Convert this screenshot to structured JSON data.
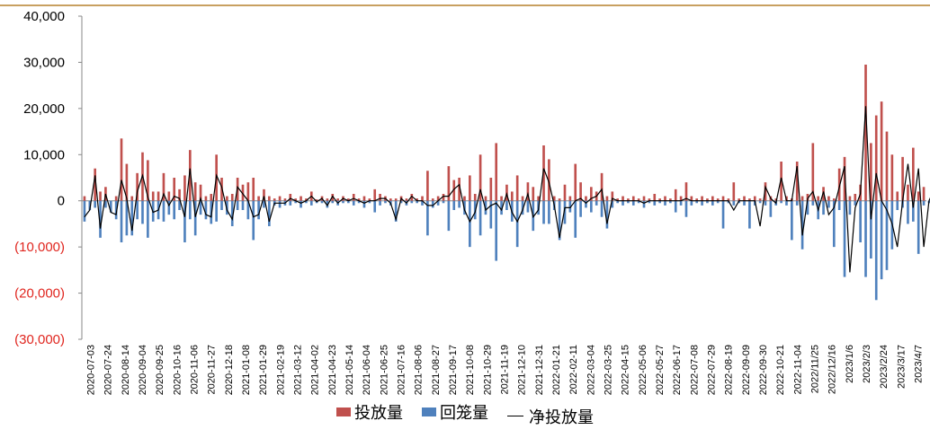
{
  "chart_data": {
    "type": "bar",
    "y_axis": {
      "ylim": [
        -30000,
        40000
      ],
      "ticks": [
        40000,
        30000,
        20000,
        10000,
        0,
        -10000,
        -20000,
        -30000
      ],
      "tick_labels": [
        "40,000",
        "30,000",
        "20,000",
        "10,000",
        "0",
        "(10,000)",
        "(20,000)",
        "(30,000)"
      ],
      "negative_color": "#e0261f"
    },
    "x_tick_labels": [
      "2020-07-03",
      "2020-07-24",
      "2020-08-14",
      "2020-09-04",
      "2020-09-25",
      "2020-10-16",
      "2020-11-06",
      "2020-11-27",
      "2020-12-18",
      "2021-01-08",
      "2021-01-29",
      "2021-02-19",
      "2021-03-12",
      "2021-04-02",
      "2021-04-23",
      "2021-05-14",
      "2021-06-04",
      "2021-06-25",
      "2021-07-16",
      "2021-08-06",
      "2021-08-27",
      "2021-09-17",
      "2021-10-08",
      "2021-10-29",
      "2021-11-19",
      "2021-12-10",
      "2021-12-31",
      "2022-01-21",
      "2022-02-11",
      "2022-03-04",
      "2022-03-25",
      "2022-04-15",
      "2022-05-06",
      "2022-05-27",
      "2022-06-17",
      "2022-07-08",
      "2022-07-29",
      "2022-08-19",
      "2022-09-09",
      "2022-09-30",
      "2022-10-21",
      "2022-11-04",
      "2022/11/25",
      "2022/12/16",
      "2023/1/6",
      "2023/2/3",
      "2023/2/24",
      "2023/3/17",
      "2023/4/7"
    ],
    "series": [
      {
        "name": "投放量",
        "color": "#c0504d",
        "values": [
          1000,
          0,
          7000,
          2000,
          3000,
          0,
          1000,
          13500,
          8000,
          1000,
          6000,
          10500,
          8800,
          2000,
          2000,
          6000,
          2000,
          5000,
          2500,
          5500,
          11000,
          4000,
          3500,
          1000,
          1500,
          10000,
          5000,
          1000,
          1500,
          5000,
          3500,
          4000,
          5000,
          1000,
          2500,
          1000,
          500,
          1000,
          500,
          1500,
          500,
          1000,
          500,
          2000,
          300,
          1000,
          500,
          1500,
          500,
          1000,
          500,
          1500,
          500,
          1000,
          500,
          2500,
          1500,
          1000,
          500,
          500,
          1000,
          500,
          1500,
          500,
          1000,
          6500,
          500,
          1000,
          1500,
          7500,
          4500,
          5000,
          1000,
          5500,
          1500,
          10000,
          1000,
          5000,
          12500,
          1000,
          3500,
          2000,
          5500,
          1000,
          4000,
          3000,
          1000,
          12000,
          9000,
          1000,
          500,
          3500,
          1000,
          8000,
          4000,
          1000,
          3000,
          2000,
          6000,
          1000,
          2000,
          500,
          1000,
          500,
          1000,
          500,
          1000,
          500,
          1500,
          500,
          1000,
          500,
          2500,
          1000,
          4000,
          1000,
          500,
          1000,
          500,
          1000,
          500,
          1000,
          500,
          4000,
          500,
          1000,
          500,
          1000,
          500,
          4000,
          1000,
          500,
          8500,
          1000,
          500,
          8500,
          1000,
          1500,
          12500,
          1000,
          3000,
          1000,
          500,
          7000,
          9500,
          1000,
          1500,
          3500,
          29500,
          12500,
          18500,
          21500,
          15000,
          10000,
          2000,
          9500,
          3500,
          11500,
          2000,
          3000
        ],
        "color_note": "red"
      },
      {
        "name": "回笼量",
        "color": "#4f81bd",
        "values": [
          -4500,
          -2000,
          -1500,
          -8000,
          -1500,
          -2500,
          -4000,
          -9000,
          -7500,
          -7500,
          -4000,
          -5000,
          -8000,
          -4500,
          -4000,
          -4500,
          -3000,
          -4000,
          -2000,
          -9000,
          -4000,
          -7500,
          -3000,
          -4000,
          -5000,
          -4500,
          -2000,
          -3000,
          -5500,
          -2000,
          -2000,
          -4000,
          -8500,
          -4000,
          -1500,
          -5500,
          -1000,
          -1500,
          -1000,
          -1000,
          -500,
          -1500,
          -500,
          -1000,
          -500,
          -500,
          -1500,
          -500,
          -1000,
          -500,
          -500,
          -1000,
          -500,
          -1500,
          -500,
          -2500,
          -1000,
          -500,
          -1000,
          -4500,
          -500,
          -1000,
          -500,
          -500,
          -1000,
          -7500,
          -1500,
          -1000,
          -500,
          -6500,
          -2000,
          -1500,
          -3000,
          -10000,
          -4000,
          -7500,
          -3000,
          -6000,
          -13000,
          -3000,
          -2000,
          -4500,
          -10000,
          -3000,
          -2500,
          -6500,
          -3000,
          -5000,
          -5000,
          -2000,
          -8500,
          -5000,
          -2500,
          -8000,
          -3500,
          -1500,
          -2500,
          -1000,
          -3500,
          -6000,
          -1500,
          -500,
          -1000,
          -500,
          -1000,
          -500,
          -1500,
          -500,
          -1000,
          -500,
          -1000,
          -500,
          -2500,
          -1000,
          -3500,
          -1000,
          -500,
          -1000,
          -500,
          -1000,
          -500,
          -6000,
          -500,
          -1000,
          -500,
          -1000,
          -6000,
          -1000,
          -500,
          -1000,
          -3500,
          -1000,
          -500,
          -1000,
          -8500,
          -1000,
          -10500,
          -3000,
          -1000,
          -4000,
          -3000,
          -1500,
          -10000,
          -2000,
          -16500,
          -3000,
          -1000,
          -9000,
          -16500,
          -12500,
          -21500,
          -17000,
          -15000,
          -10500,
          -2000,
          -1500,
          -5000,
          -4500,
          -11500,
          -1000,
          -500
        ],
        "color_note": "blue"
      },
      {
        "name": "净投放量",
        "color": "#000000",
        "values": [
          -3500,
          -2000,
          5500,
          -6000,
          1500,
          -2500,
          -3000,
          4500,
          500,
          -6500,
          2000,
          5500,
          800,
          -2500,
          -2000,
          1500,
          -1000,
          1000,
          500,
          -3500,
          7000,
          -3500,
          500,
          -3000,
          -3500,
          5500,
          3000,
          -2000,
          -4000,
          3000,
          1500,
          0,
          -3500,
          -3000,
          1000,
          -4500,
          -500,
          -500,
          -500,
          500,
          0,
          -500,
          0,
          1000,
          -200,
          500,
          -1000,
          1000,
          -500,
          500,
          0,
          500,
          0,
          -500,
          0,
          0,
          500,
          500,
          -500,
          -4000,
          500,
          -500,
          1000,
          0,
          0,
          -1000,
          -1000,
          0,
          1000,
          1000,
          2500,
          3500,
          -2000,
          -4500,
          -2500,
          2500,
          -2000,
          -1000,
          -500,
          -2000,
          1500,
          -2500,
          -4500,
          -2000,
          1500,
          -3500,
          -2000,
          7000,
          4000,
          -1000,
          -8000,
          -1500,
          -1500,
          0,
          500,
          -500,
          500,
          1000,
          2500,
          -5000,
          500,
          0,
          0,
          0,
          0,
          0,
          -500,
          0,
          0,
          0,
          0,
          0,
          0,
          0,
          500,
          0,
          0,
          0,
          0,
          0,
          0,
          0,
          0,
          -2000,
          0,
          0,
          0,
          0,
          -5500,
          3000,
          500,
          -500,
          5000,
          0,
          0,
          7500,
          -7500,
          500,
          2000,
          -2000,
          2000,
          -3000,
          -1500,
          3000,
          7500,
          -15500,
          -1500,
          1500,
          20500,
          -4000,
          6000,
          0,
          -2000,
          -5000,
          -10000,
          0,
          8000,
          -1500,
          7000,
          -10000,
          0,
          2500
        ]
      }
    ]
  },
  "legend": {
    "items": [
      {
        "label": "投放量",
        "color": "#c0504d"
      },
      {
        "label": "回笼量",
        "color": "#4f81bd"
      },
      {
        "label": "净投放量",
        "color": "#000000"
      }
    ]
  }
}
